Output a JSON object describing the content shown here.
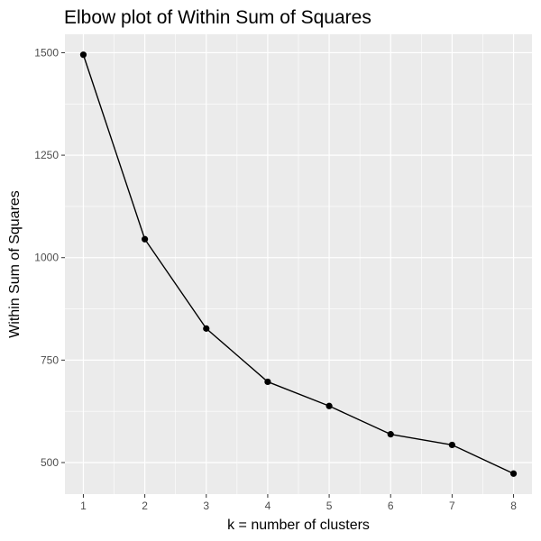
{
  "chart_data": {
    "type": "line",
    "title": "Elbow plot of Within Sum of Squares",
    "xlabel": "k = number of clusters",
    "ylabel": "Within Sum of Squares",
    "x": [
      1,
      2,
      3,
      4,
      5,
      6,
      7,
      8
    ],
    "series": [
      {
        "values": [
          1495,
          1045,
          827,
          697,
          638,
          569,
          543,
          473
        ]
      }
    ],
    "xlim": [
      0.7,
      8.3
    ],
    "ylim": [
      423,
      1545
    ],
    "x_ticks": [
      "1",
      "2",
      "3",
      "4",
      "5",
      "6",
      "7",
      "8"
    ],
    "x_tick_values": [
      1,
      2,
      3,
      4,
      5,
      6,
      7,
      8
    ],
    "y_ticks": [
      "500",
      "750",
      "1000",
      "1250",
      "1500"
    ],
    "y_tick_values": [
      500,
      750,
      1000,
      1250,
      1500
    ],
    "y_minor_values": [
      625,
      875,
      1125,
      1375
    ],
    "x_minor_values": [
      1.5,
      2.5,
      3.5,
      4.5,
      5.5,
      6.5,
      7.5
    ],
    "grid": true,
    "legend": "none",
    "colors": {
      "panel_background": "#ebebeb",
      "grid": "#ffffff",
      "line": "#000000",
      "point": "#000000",
      "tick_text": "#4d4d4d",
      "tick_mark": "#333333"
    }
  }
}
